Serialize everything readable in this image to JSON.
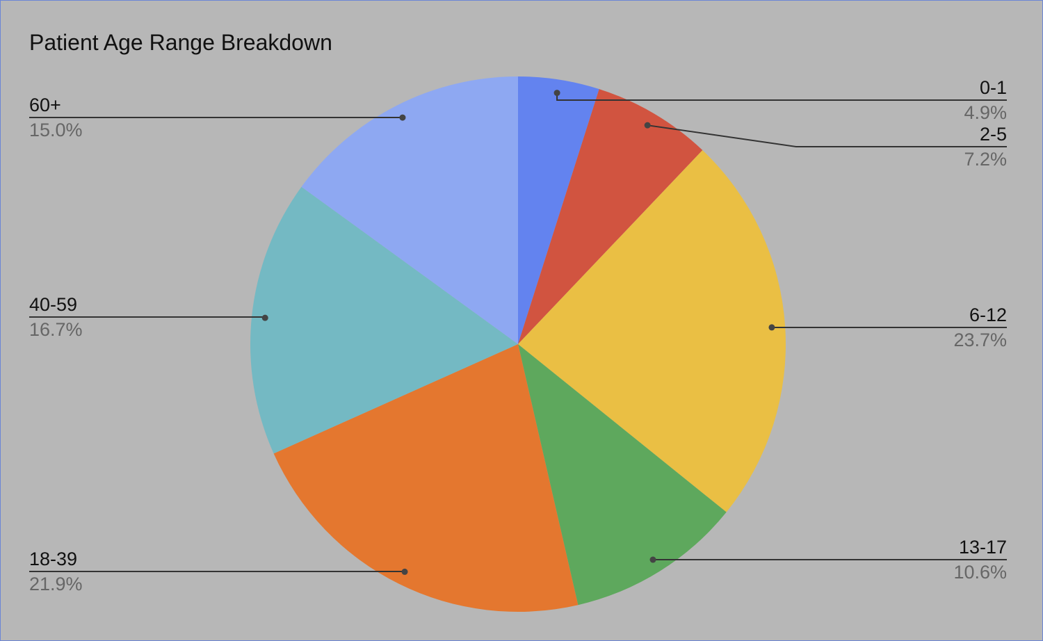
{
  "chart_data": {
    "type": "pie",
    "title": "Patient Age Range Breakdown",
    "categories": [
      "0-1",
      "2-5",
      "6-12",
      "13-17",
      "18-39",
      "40-59",
      "60+"
    ],
    "values": [
      4.9,
      7.2,
      23.7,
      10.6,
      21.9,
      16.7,
      15.0
    ],
    "value_labels": [
      "4.9%",
      "7.2%",
      "23.7%",
      "10.6%",
      "21.9%",
      "16.7%",
      "15.0%"
    ],
    "colors": [
      "#6383ef",
      "#d15440",
      "#eabf44",
      "#5ea85d",
      "#e4772f",
      "#74b9c3",
      "#8ea8f2"
    ]
  }
}
